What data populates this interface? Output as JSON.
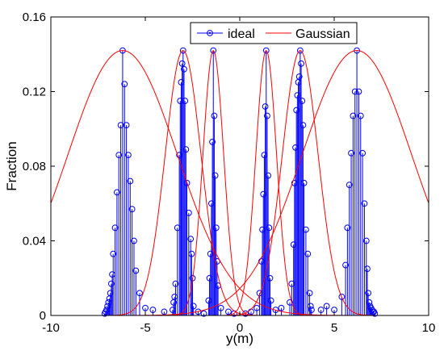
{
  "chart_data": {
    "type": "line",
    "title": "",
    "xlabel": "y(m)",
    "ylabel": "Fraction",
    "xlim": [
      -10,
      10
    ],
    "ylim": [
      0,
      0.16
    ],
    "xticks": [
      -10,
      -5,
      0,
      5,
      10
    ],
    "xtick_labels": [
      "-10",
      "-5",
      "0",
      "5",
      "10"
    ],
    "yticks": [
      0,
      0.04,
      0.08,
      0.12,
      0.16
    ],
    "ytick_labels": [
      "0",
      "0.04",
      "0.08",
      "0.12",
      "0.16"
    ],
    "grid": false,
    "legend": {
      "placement": "top",
      "entries": [
        "ideal",
        "Gaussian"
      ]
    },
    "colors": {
      "ideal": "#0000ff",
      "gaussian": "#ff0000"
    },
    "series": [
      {
        "name": "ideal",
        "style": "stem",
        "peaks": [
          -6.2,
          -3.0,
          -1.4,
          1.4,
          3.2,
          6.2
        ],
        "x": [
          -7.15,
          -7.1,
          -7.05,
          -7.0,
          -6.95,
          -6.9,
          -6.85,
          -6.8,
          -6.75,
          -6.7,
          -6.6,
          -6.5,
          -6.4,
          -6.3,
          -6.2,
          -6.1,
          -6.0,
          -5.9,
          -5.8,
          -5.7,
          -5.6,
          -5.5,
          -5.3,
          -5.0,
          -4.6,
          -4.0,
          -3.55,
          -3.5,
          -3.45,
          -3.4,
          -3.3,
          -3.2,
          -3.15,
          -3.1,
          -3.05,
          -3.0,
          -2.95,
          -2.9,
          -2.85,
          -2.8,
          -2.7,
          -2.6,
          -2.55,
          -2.5,
          -2.45,
          -2.2,
          -1.9,
          -1.65,
          -1.6,
          -1.55,
          -1.5,
          -1.45,
          -1.4,
          -1.35,
          -1.3,
          -1.25,
          -1.2,
          -1.15,
          -1.0,
          -0.6,
          -0.3,
          0.3,
          0.6,
          0.9,
          1.05,
          1.15,
          1.2,
          1.25,
          1.3,
          1.35,
          1.4,
          1.45,
          1.5,
          1.55,
          1.6,
          1.65,
          1.9,
          2.2,
          2.65,
          2.75,
          2.85,
          2.9,
          2.95,
          3.0,
          3.05,
          3.1,
          3.15,
          3.2,
          3.25,
          3.3,
          3.35,
          3.4,
          3.5,
          3.6,
          3.7,
          3.75,
          3.8,
          4.3,
          4.6,
          5.0,
          5.4,
          5.6,
          5.7,
          5.8,
          5.9,
          6.0,
          6.1,
          6.2,
          6.3,
          6.4,
          6.5,
          6.6,
          6.7,
          6.75,
          6.8,
          6.85,
          6.9,
          6.95,
          7.0,
          7.05,
          7.1,
          7.15
        ],
        "y": [
          0.001,
          0.002,
          0.003,
          0.005,
          0.007,
          0.009,
          0.012,
          0.017,
          0.022,
          0.033,
          0.047,
          0.066,
          0.086,
          0.102,
          0.142,
          0.124,
          0.102,
          0.086,
          0.072,
          0.057,
          0.04,
          0.024,
          0.012,
          0.004,
          0.003,
          0.002,
          0.003,
          0.007,
          0.01,
          0.017,
          0.047,
          0.086,
          0.115,
          0.125,
          0.135,
          0.142,
          0.132,
          0.115,
          0.089,
          0.071,
          0.055,
          0.041,
          0.033,
          0.02,
          0.005,
          0.002,
          0.001,
          0.008,
          0.02,
          0.033,
          0.06,
          0.093,
          0.142,
          0.107,
          0.075,
          0.047,
          0.029,
          0.016,
          0.004,
          0.002,
          0.001,
          0.001,
          0.002,
          0.004,
          0.012,
          0.029,
          0.046,
          0.065,
          0.086,
          0.112,
          0.142,
          0.107,
          0.075,
          0.047,
          0.02,
          0.008,
          0.003,
          0.004,
          0.007,
          0.017,
          0.038,
          0.071,
          0.09,
          0.11,
          0.118,
          0.125,
          0.128,
          0.142,
          0.135,
          0.115,
          0.102,
          0.071,
          0.046,
          0.033,
          0.012,
          0.005,
          0.003,
          0.003,
          0.005,
          0.003,
          0.01,
          0.027,
          0.047,
          0.07,
          0.087,
          0.107,
          0.12,
          0.142,
          0.12,
          0.107,
          0.087,
          0.06,
          0.04,
          0.025,
          0.012,
          0.007,
          0.005,
          0.004,
          0.003,
          0.002,
          0.002,
          0.001
        ]
      },
      {
        "name": "Gaussian",
        "style": "line",
        "components": [
          {
            "mean": -6.2,
            "sd": 2.9,
            "peak": 0.142
          },
          {
            "mean": -3.0,
            "sd": 0.95,
            "peak": 0.142
          },
          {
            "mean": -1.4,
            "sd": 0.55,
            "peak": 0.142
          },
          {
            "mean": 1.4,
            "sd": 0.55,
            "peak": 0.142
          },
          {
            "mean": 3.2,
            "sd": 0.95,
            "peak": 0.142
          },
          {
            "mean": 6.2,
            "sd": 2.9,
            "peak": 0.142
          }
        ]
      }
    ]
  }
}
